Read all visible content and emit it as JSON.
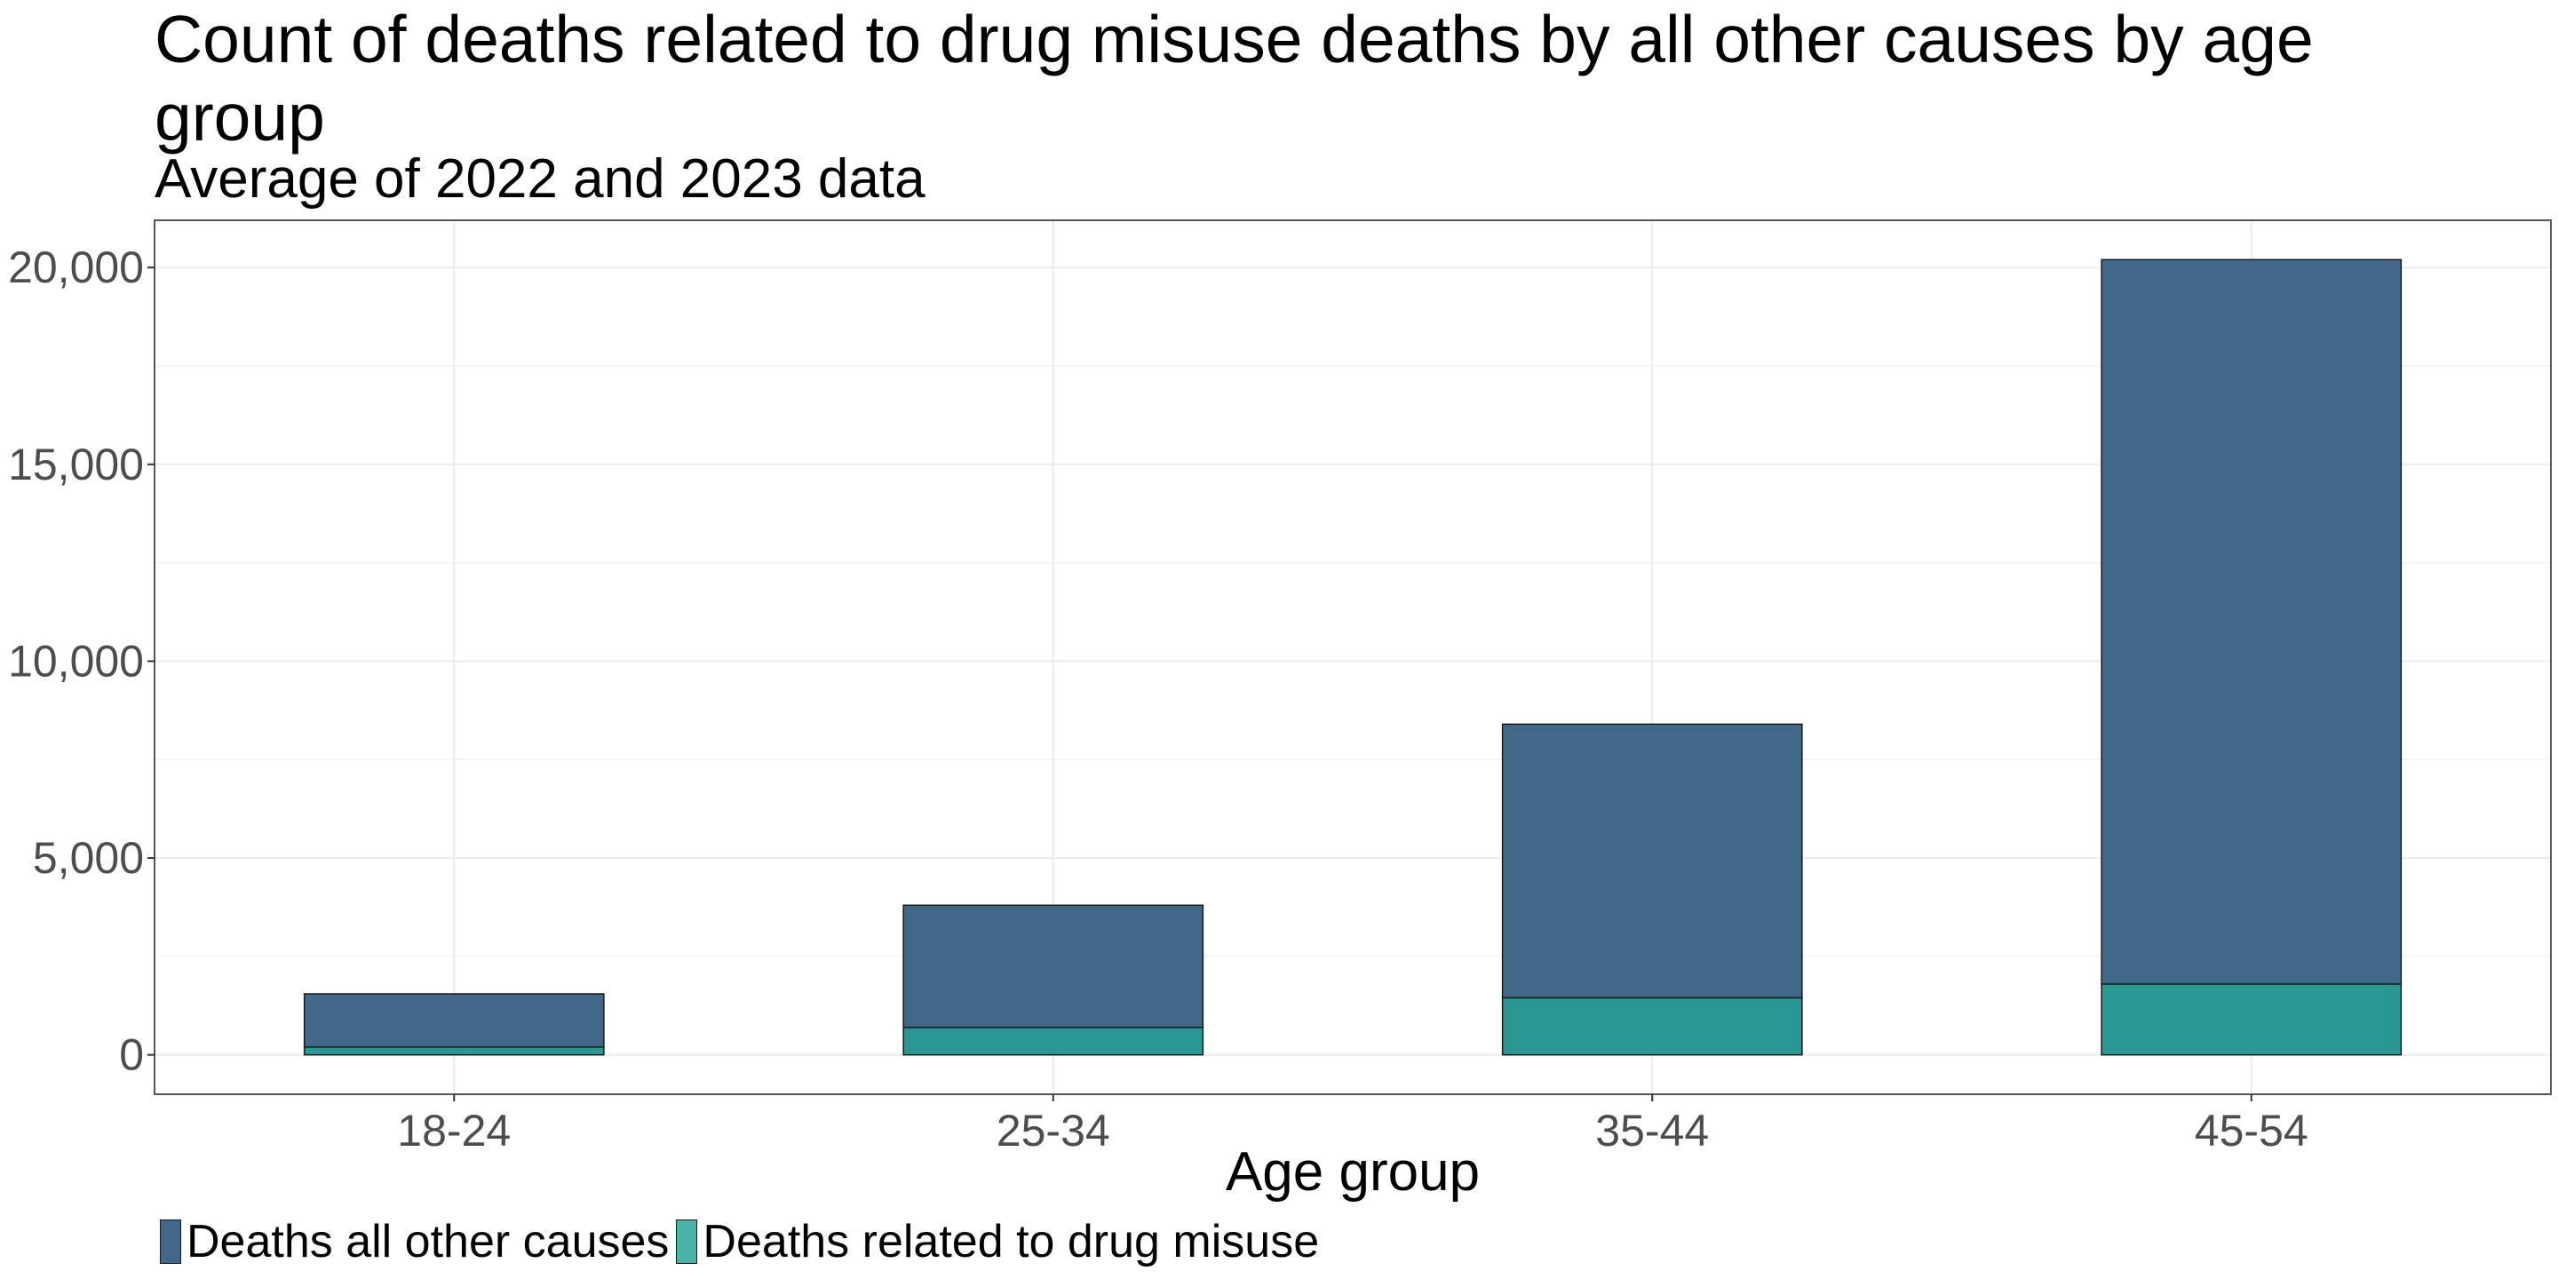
{
  "chart_data": {
    "type": "bar",
    "stacked": true,
    "title": "Count of deaths related to drug misuse deaths by all other causes by age group",
    "subtitle": "Average of 2022 and 2023 data",
    "xlabel": "Age group",
    "ylabel": "",
    "categories": [
      "18-24",
      "25-34",
      "35-44",
      "45-54"
    ],
    "series": [
      {
        "name": "Deaths related to drug misuse",
        "values": [
          200,
          700,
          1450,
          1800
        ],
        "color": "#2a9792"
      },
      {
        "name": "Deaths all other causes",
        "values": [
          1350,
          3100,
          6950,
          18400
        ],
        "color": "#416888"
      }
    ],
    "ylim": [
      -1000,
      21200
    ],
    "yticks": [
      0,
      5000,
      10000,
      15000,
      20000
    ],
    "ytick_labels": [
      "0",
      "5,000",
      "10,000",
      "15,000",
      "20,000"
    ],
    "grid": true,
    "legend_position": "bottom-left",
    "legend_order": [
      "Deaths all other causes",
      "Deaths related to drug misuse"
    ],
    "legend_swatch_colors": [
      "#416888",
      "#4db2a7"
    ]
  }
}
